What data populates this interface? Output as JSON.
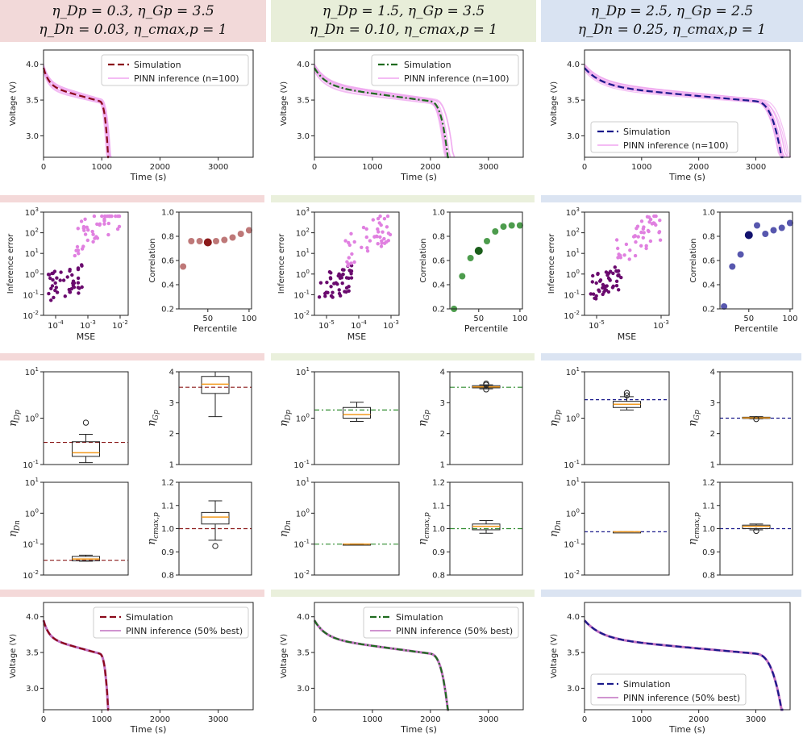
{
  "columns": [
    {
      "id": "col1",
      "header": [
        "η_Dp = 0.3,  η_Gp = 3.5",
        "η_Dn = 0.03,  η_cmax,p = 1"
      ],
      "bg": "#f2d9d9",
      "band": "#f4d9d9",
      "sim_color": "#8b0a1a",
      "sim_dash": "8,4",
      "best_color": "#6a0a6e",
      "scatter_color": "#b36060",
      "highlight_color": "#8b1a1a",
      "ref_color": "#8b1a1a",
      "ref_dash": "5,3",
      "legend_pos": "top-right",
      "legend_pos_best": "top-right",
      "discharge_end": 1120,
      "inference_range": [
        3.15,
        3.95
      ]
    },
    {
      "id": "col2",
      "header": [
        "η_Dp = 1.5,  η_Gp = 3.5",
        "η_Dn = 0.10,  η_cmax,p = 1"
      ],
      "bg": "#e8eed9",
      "band": "#eaf0dc",
      "sim_color": "#1f6b1f",
      "sim_dash": "8,3,2,3",
      "best_color": "#6a0a6e",
      "scatter_color": "#2e8b2e",
      "highlight_color": "#1a5e1a",
      "ref_color": "#2e8b2e",
      "ref_dash": "6,3,2,3",
      "legend_pos": "top-right",
      "legend_pos_best": "top-right",
      "discharge_end": 2320,
      "inference_range": [
        3.2,
        3.95
      ]
    },
    {
      "id": "col3",
      "header": [
        "η_Dp = 2.5,  η_Gp = 2.5",
        "η_Dn = 0.25,  η_cmax,p = 1"
      ],
      "bg": "#d9e3f2",
      "band": "#dbe4f2",
      "sim_color": "#1a1a8b",
      "sim_dash": "8,4",
      "best_color": "#6a0a6e",
      "scatter_color": "#3a3aa0",
      "highlight_color": "#12126e",
      "ref_color": "#1a1a8b",
      "ref_dash": "4,3",
      "legend_pos": "bottom-left",
      "legend_pos_best": "bottom-left",
      "discharge_end": 3480,
      "inference_range": [
        3.3,
        3.95
      ]
    }
  ],
  "chart_data": [
    {
      "type": "line",
      "row": "voltage_inference",
      "title": "",
      "xlabel": "Time (s)",
      "ylabel": "Voltage (V)",
      "xlim": [
        0,
        3600
      ],
      "ylim": [
        2.7,
        4.2
      ],
      "xticks": [
        "0",
        "1000",
        "2000",
        "3000"
      ],
      "yticks": [
        "3.0",
        "3.5",
        "4.0"
      ],
      "legend": [
        "Simulation",
        "PINN inference (n=100)"
      ],
      "series_shape": {
        "start_voltage": 3.95,
        "plateau_voltage": 3.55,
        "end_voltage": 2.7
      },
      "discharge_end_s": [
        1120,
        2320,
        3480
      ]
    },
    {
      "type": "scatter",
      "row": "error_vs_mse",
      "xlabel": "MSE",
      "ylabel": "Inference error",
      "yscale": "log",
      "ylim": [
        0.01,
        1000
      ],
      "yticks": [
        "10^-2",
        "10^-1",
        "10^0",
        "10^1",
        "10^2",
        "10^3"
      ],
      "xticks_per_column": [
        [
          "10^-4",
          "10^-3",
          "10^-2"
        ],
        [
          "10^-5",
          "10^-4",
          "10^-3"
        ],
        [
          "10^-5",
          "10^-3"
        ]
      ],
      "note": "dark purple = best 50%, pink = remaining samples"
    },
    {
      "type": "scatter",
      "row": "correlation_vs_percentile",
      "xlabel": "Percentile",
      "ylabel": "Correlation",
      "xlim": [
        15,
        103
      ],
      "ylim": [
        0.2,
        1.0
      ],
      "xticks": [
        "50",
        "100"
      ],
      "yticks": [
        "0.2",
        "0.4",
        "0.6",
        "0.8",
        "1.0"
      ],
      "x": [
        20,
        30,
        40,
        50,
        60,
        70,
        80,
        90,
        100
      ],
      "series": [
        {
          "name": "col1",
          "values": [
            0.55,
            0.76,
            0.76,
            0.75,
            0.76,
            0.77,
            0.79,
            0.82,
            0.85
          ]
        },
        {
          "name": "col2",
          "values": [
            0.2,
            0.47,
            0.62,
            0.68,
            0.76,
            0.84,
            0.88,
            0.89,
            0.89
          ]
        },
        {
          "name": "col3",
          "values": [
            0.22,
            0.55,
            0.65,
            0.81,
            0.89,
            0.82,
            0.85,
            0.87,
            0.91
          ]
        }
      ],
      "highlight_x": 50
    },
    {
      "type": "box",
      "row": "parameters",
      "params": [
        {
          "name": "η_Dp",
          "yscale": "log",
          "ylim": [
            0.1,
            10
          ],
          "yticks": [
            "10^-1",
            "10^0",
            "10^1"
          ],
          "true": [
            0.3,
            1.5,
            2.5
          ],
          "box": [
            {
              "whislo": 0.11,
              "q1": 0.15,
              "med": 0.18,
              "q3": 0.31,
              "whishi": 0.45,
              "fliers": [
                0.8
              ]
            },
            {
              "whislo": 0.85,
              "q1": 1.0,
              "med": 1.2,
              "q3": 1.7,
              "whishi": 2.2,
              "fliers": []
            },
            {
              "whislo": 1.5,
              "q1": 1.7,
              "med": 2.0,
              "q3": 2.3,
              "whishi": 2.9,
              "fliers": [
                3.1,
                3.5
              ]
            }
          ]
        },
        {
          "name": "η_Gp",
          "yscale": "linear",
          "ylim": [
            1,
            4
          ],
          "yticks": [
            "1",
            "2",
            "3",
            "4"
          ],
          "true": [
            3.5,
            3.5,
            2.5
          ],
          "box": [
            {
              "whislo": 2.55,
              "q1": 3.3,
              "med": 3.6,
              "q3": 3.85,
              "whishi": 4.0,
              "fliers": []
            },
            {
              "whislo": 3.45,
              "q1": 3.48,
              "med": 3.51,
              "q3": 3.55,
              "whishi": 3.58,
              "fliers": [
                3.43,
                3.58,
                3.62
              ]
            },
            {
              "whislo": 2.48,
              "q1": 2.5,
              "med": 2.51,
              "q3": 2.53,
              "whishi": 2.55,
              "fliers": [
                2.47
              ]
            }
          ]
        },
        {
          "name": "η_Dn",
          "yscale": "log",
          "ylim": [
            0.01,
            10
          ],
          "yticks": [
            "10^-2",
            "10^-1",
            "10^0",
            "10^1"
          ],
          "true": [
            0.03,
            0.1,
            0.25
          ],
          "box": [
            {
              "whislo": 0.028,
              "q1": 0.029,
              "med": 0.033,
              "q3": 0.04,
              "whishi": 0.044,
              "fliers": []
            },
            {
              "whislo": 0.098,
              "q1": 0.099,
              "med": 0.1,
              "q3": 0.101,
              "whishi": 0.102,
              "fliers": []
            },
            {
              "whislo": 0.248,
              "q1": 0.249,
              "med": 0.25,
              "q3": 0.251,
              "whishi": 0.252,
              "fliers": []
            }
          ]
        },
        {
          "name": "η_cmax,p",
          "yscale": "linear",
          "ylim": [
            0.8,
            1.2
          ],
          "yticks": [
            "0.8",
            "0.9",
            "1.0",
            "1.1",
            "1.2"
          ],
          "true": [
            1.0,
            1.0,
            1.0
          ],
          "box": [
            {
              "whislo": 0.95,
              "q1": 1.02,
              "med": 1.05,
              "q3": 1.07,
              "whishi": 1.12,
              "fliers": [
                0.925
              ]
            },
            {
              "whislo": 0.98,
              "q1": 0.995,
              "med": 1.01,
              "q3": 1.02,
              "whishi": 1.035,
              "fliers": []
            },
            {
              "whislo": 0.995,
              "q1": 1.0,
              "med": 1.01,
              "q3": 1.015,
              "whishi": 1.02,
              "fliers": [
                0.99
              ]
            }
          ]
        }
      ]
    },
    {
      "type": "line",
      "row": "voltage_best",
      "xlabel": "Time (s)",
      "ylabel": "Voltage (V)",
      "xlim": [
        0,
        3600
      ],
      "ylim": [
        2.7,
        4.2
      ],
      "xticks": [
        "0",
        "1000",
        "2000",
        "3000"
      ],
      "yticks": [
        "3.0",
        "3.5",
        "4.0"
      ],
      "legend": [
        "Simulation",
        "PINN inference (50% best)"
      ]
    }
  ]
}
